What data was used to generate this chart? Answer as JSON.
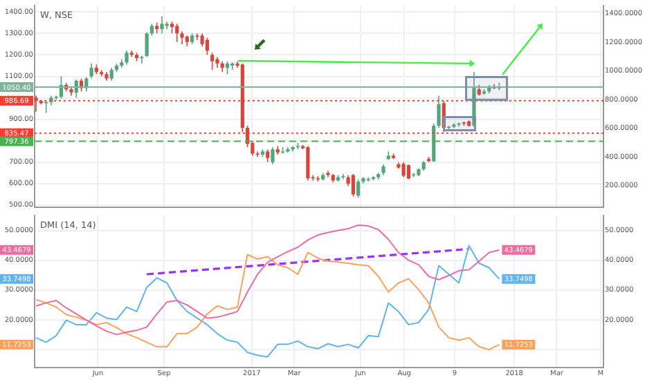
{
  "chart_data": [
    {
      "type": "candlestick",
      "title": "W, NSE",
      "x": [
        "2016-03-07",
        "2016-03-14",
        "2016-03-21",
        "2016-03-28",
        "2016-04-04",
        "2016-04-11",
        "2016-04-18",
        "2016-04-25",
        "2016-05-02",
        "2016-05-09",
        "2016-05-16",
        "2016-05-23",
        "2016-05-30",
        "2016-06-06",
        "2016-06-13",
        "2016-06-20",
        "2016-06-27",
        "2016-07-04",
        "2016-07-11",
        "2016-07-18",
        "2016-07-25",
        "2016-08-01",
        "2016-08-08",
        "2016-08-15",
        "2016-08-22",
        "2016-08-29",
        "2016-09-05",
        "2016-09-12",
        "2016-09-19",
        "2016-09-26",
        "2016-10-03",
        "2016-10-10",
        "2016-10-17",
        "2016-10-24",
        "2016-10-31",
        "2016-11-07",
        "2016-11-14",
        "2016-11-21",
        "2016-11-28",
        "2016-12-05",
        "2016-12-12",
        "2016-12-19",
        "2016-12-26",
        "2017-01-02",
        "2017-01-09",
        "2017-01-16",
        "2017-01-23",
        "2017-01-30",
        "2017-02-06",
        "2017-02-13",
        "2017-02-20",
        "2017-02-27",
        "2017-03-06",
        "2017-03-13",
        "2017-03-20",
        "2017-03-27",
        "2017-04-03",
        "2017-04-10",
        "2017-04-17",
        "2017-04-24",
        "2017-05-01",
        "2017-05-08",
        "2017-05-15",
        "2017-05-22",
        "2017-05-29",
        "2017-06-05",
        "2017-06-12",
        "2017-06-19",
        "2017-06-26",
        "2017-07-03",
        "2017-07-10",
        "2017-07-17",
        "2017-07-24",
        "2017-07-31",
        "2017-08-07",
        "2017-08-14",
        "2017-08-21",
        "2017-08-28",
        "2017-09-04",
        "2017-09-11",
        "2017-09-18",
        "2017-09-25",
        "2017-10-02",
        "2017-10-09",
        "2017-10-16",
        "2017-10-23",
        "2017-10-30",
        "2017-11-06",
        "2017-11-13",
        "2017-11-20",
        "2017-11-27",
        "2017-12-04",
        "2017-12-11"
      ],
      "ohlc": [
        [
          1000,
          1010,
          935,
          985
        ],
        [
          985,
          990,
          970,
          975
        ],
        [
          975,
          985,
          930,
          980
        ],
        [
          980,
          1010,
          965,
          1000
        ],
        [
          1000,
          1010,
          990,
          1005
        ],
        [
          1005,
          1100,
          995,
          1060
        ],
        [
          1060,
          1070,
          1030,
          1040
        ],
        [
          1040,
          1050,
          1010,
          1025
        ],
        [
          1025,
          1085,
          1000,
          1080
        ],
        [
          1080,
          1090,
          1030,
          1045
        ],
        [
          1045,
          1095,
          1030,
          1090
        ],
        [
          1100,
          1160,
          1090,
          1140
        ],
        [
          1140,
          1155,
          1110,
          1120
        ],
        [
          1120,
          1130,
          1100,
          1110
        ],
        [
          1110,
          1120,
          1080,
          1090
        ],
        [
          1090,
          1140,
          1080,
          1130
        ],
        [
          1130,
          1160,
          1120,
          1150
        ],
        [
          1150,
          1180,
          1140,
          1165
        ],
        [
          1165,
          1220,
          1155,
          1210
        ],
        [
          1210,
          1220,
          1190,
          1200
        ],
        [
          1200,
          1210,
          1170,
          1185
        ],
        [
          1185,
          1195,
          1160,
          1190
        ],
        [
          1195,
          1305,
          1190,
          1300
        ],
        [
          1300,
          1345,
          1290,
          1335
        ],
        [
          1335,
          1350,
          1300,
          1320
        ],
        [
          1320,
          1380,
          1300,
          1345
        ],
        [
          1335,
          1355,
          1320,
          1345
        ],
        [
          1345,
          1355,
          1300,
          1330
        ],
        [
          1335,
          1345,
          1260,
          1300
        ],
        [
          1300,
          1310,
          1250,
          1280
        ],
        [
          1285,
          1290,
          1240,
          1260
        ],
        [
          1260,
          1300,
          1250,
          1290
        ],
        [
          1290,
          1300,
          1270,
          1285
        ],
        [
          1290,
          1300,
          1240,
          1250
        ],
        [
          1270,
          1280,
          1200,
          1220
        ],
        [
          1200,
          1210,
          1130,
          1170
        ],
        [
          1180,
          1190,
          1140,
          1160
        ],
        [
          1160,
          1170,
          1120,
          1140
        ],
        [
          1140,
          1170,
          1110,
          1160
        ],
        [
          1150,
          1165,
          1130,
          1160
        ],
        [
          1160,
          1170,
          1140,
          1150
        ],
        [
          1155,
          1160,
          840,
          860
        ],
        [
          860,
          870,
          770,
          785
        ],
        [
          790,
          800,
          730,
          740
        ],
        [
          740,
          750,
          725,
          735
        ],
        [
          735,
          760,
          725,
          750
        ],
        [
          750,
          760,
          700,
          720
        ],
        [
          700,
          770,
          690,
          760
        ],
        [
          760,
          775,
          735,
          745
        ],
        [
          745,
          770,
          740,
          750
        ],
        [
          750,
          770,
          745,
          760
        ],
        [
          760,
          775,
          750,
          770
        ],
        [
          770,
          790,
          760,
          775
        ],
        [
          775,
          780,
          760,
          765
        ],
        [
          770,
          775,
          615,
          625
        ],
        [
          630,
          640,
          615,
          625
        ],
        [
          625,
          635,
          610,
          620
        ],
        [
          620,
          650,
          615,
          640
        ],
        [
          650,
          660,
          630,
          640
        ],
        [
          640,
          645,
          605,
          615
        ],
        [
          615,
          640,
          610,
          630
        ],
        [
          630,
          645,
          620,
          635
        ],
        [
          630,
          640,
          590,
          600
        ],
        [
          640,
          645,
          540,
          550
        ],
        [
          545,
          620,
          535,
          610
        ],
        [
          610,
          630,
          600,
          625
        ],
        [
          620,
          630,
          610,
          622
        ],
        [
          622,
          635,
          615,
          630
        ],
        [
          630,
          650,
          620,
          645
        ],
        [
          650,
          690,
          640,
          680
        ],
        [
          715,
          750,
          710,
          730
        ],
        [
          730,
          740,
          715,
          720
        ],
        [
          690,
          700,
          670,
          675
        ],
        [
          692,
          700,
          630,
          637
        ],
        [
          686,
          690,
          620,
          624
        ],
        [
          640,
          650,
          630,
          643
        ],
        [
          640,
          670,
          635,
          668
        ],
        [
          668,
          705,
          660,
          700
        ],
        [
          715,
          725,
          700,
          705
        ],
        [
          705,
          880,
          700,
          870
        ],
        [
          870,
          1010,
          860,
          970
        ],
        [
          975,
          985,
          840,
          860
        ],
        [
          862,
          870,
          855,
          865
        ],
        [
          865,
          880,
          860,
          875
        ],
        [
          875,
          885,
          865,
          880
        ],
        [
          885,
          890,
          870,
          880
        ],
        [
          890,
          895,
          865,
          870
        ],
        [
          870,
          1120,
          865,
          1050
        ],
        [
          1040,
          1060,
          1010,
          1015
        ],
        [
          1020,
          1040,
          1015,
          1030
        ],
        [
          1030,
          1060,
          1020,
          1050
        ],
        [
          1050,
          1065,
          1040,
          1045
        ],
        [
          1045,
          1070,
          1035,
          1050
        ]
      ],
      "xlim": [
        "2016-03-05",
        "2018-05-05"
      ],
      "xticks": [
        {
          "value": "2016-06-01",
          "label": null
        },
        {
          "value": "2016-09-01",
          "label": null
        },
        {
          "value": "2017-01-01",
          "label": null
        },
        {
          "value": "2017-03-01",
          "label": null
        },
        {
          "value": "2017-06-01",
          "label": null
        },
        {
          "value": "2017-08-01",
          "label": null
        },
        {
          "value": "2017-10-10",
          "label": null
        },
        {
          "value": "2018-01-01",
          "label": null
        },
        {
          "value": "2018-03-01",
          "label": null
        },
        {
          "value": "2018-05-01",
          "label": null
        }
      ],
      "ylim": [
        490,
        1430
      ],
      "yticks": [
        {
          "value": 500,
          "label": "500.00"
        },
        {
          "value": 600,
          "label": "600.00"
        },
        {
          "value": 700,
          "label": "700.00"
        },
        {
          "value": 800,
          "label": null
        },
        {
          "value": 900,
          "label": "900.00"
        },
        {
          "value": 1000,
          "label": null
        },
        {
          "value": 1100,
          "label": "1100.00"
        },
        {
          "value": 1200,
          "label": "1200.00"
        },
        {
          "value": 1300,
          "label": "1300.00"
        },
        {
          "value": 1400,
          "label": "1400.00"
        }
      ],
      "y2lim": [
        50,
        1455
      ],
      "y2ticks": [
        {
          "value": 200,
          "label": "200.0000"
        },
        {
          "value": 400,
          "label": "400.0000"
        },
        {
          "value": 600,
          "label": "600.0000"
        },
        {
          "value": 800,
          "label": "800.0000"
        },
        {
          "value": 1000,
          "label": "1000.0000"
        },
        {
          "value": 1200,
          "label": "1200.0000"
        },
        {
          "value": 1400,
          "label": "1400.0000"
        }
      ],
      "tick_labels": "y",
      "grid": true,
      "ref_lines": [
        {
          "axis": "y",
          "value": 1050.4,
          "label": "1050.40",
          "color": "#7fb39a",
          "line_style": "solid"
        },
        {
          "axis": "y",
          "value": 986.69,
          "label": "986.69",
          "color": "#ff3b30",
          "line_style": "dotted"
        },
        {
          "axis": "y",
          "value": 835.47,
          "label": "835.47",
          "color": "#ff3b30",
          "line_style": "dotted"
        },
        {
          "axis": "y",
          "value": 797.36,
          "label": "797.36",
          "color": "#4caf50",
          "line_style": "dashed"
        }
      ]
    },
    {
      "type": "line",
      "title": "DMI (14, 14)",
      "x": [
        "2016-03-07",
        "2016-03-21",
        "2016-04-04",
        "2016-04-18",
        "2016-05-02",
        "2016-05-16",
        "2016-05-30",
        "2016-06-13",
        "2016-06-27",
        "2016-07-11",
        "2016-07-25",
        "2016-08-08",
        "2016-08-22",
        "2016-09-05",
        "2016-09-19",
        "2016-10-03",
        "2016-10-17",
        "2016-10-31",
        "2016-11-14",
        "2016-11-28",
        "2016-12-12",
        "2016-12-26",
        "2017-01-09",
        "2017-01-23",
        "2017-02-06",
        "2017-02-20",
        "2017-03-06",
        "2017-03-20",
        "2017-04-03",
        "2017-04-17",
        "2017-05-01",
        "2017-05-15",
        "2017-05-29",
        "2017-06-12",
        "2017-06-26",
        "2017-07-10",
        "2017-07-24",
        "2017-08-07",
        "2017-08-21",
        "2017-09-04",
        "2017-09-18",
        "2017-10-02",
        "2017-10-16",
        "2017-10-30",
        "2017-11-13",
        "2017-11-27",
        "2017-12-11"
      ],
      "xlim": [
        "2016-03-05",
        "2018-05-05"
      ],
      "xticks": [
        {
          "value": "2016-06-01",
          "label": "Jun"
        },
        {
          "value": "2016-09-01",
          "label": "Sep"
        },
        {
          "value": "2017-01-01",
          "label": "2017"
        },
        {
          "value": "2017-03-01",
          "label": "Mar"
        },
        {
          "value": "2017-06-01",
          "label": "Jun"
        },
        {
          "value": "2017-08-01",
          "label": "Aug"
        },
        {
          "value": "2017-10-10",
          "label": "9"
        },
        {
          "value": "2018-01-01",
          "label": "2018"
        },
        {
          "value": "2018-03-01",
          "label": "Mar"
        },
        {
          "value": "2018-05-01",
          "label": "M"
        }
      ],
      "ylim": [
        4,
        55
      ],
      "yticks": [
        {
          "value": 10,
          "label": null
        },
        {
          "value": 20,
          "label": "20.0000"
        },
        {
          "value": 30,
          "label": "30.0000"
        },
        {
          "value": 40,
          "label": "40.0000"
        },
        {
          "value": 50,
          "label": "50.0000"
        }
      ],
      "y2lim": [
        4,
        55
      ],
      "y2ticks": [
        {
          "value": 10,
          "label": null
        },
        {
          "value": 20,
          "label": "20.0000"
        },
        {
          "value": 30,
          "label": "30.0000"
        },
        {
          "value": 40,
          "label": "40.0000"
        },
        {
          "value": 50,
          "label": "50.0000"
        }
      ],
      "grid": true,
      "marker": "none",
      "series": [
        {
          "color": "#f06aa0",
          "values": [
            24.7,
            25.7,
            26.5,
            24,
            22,
            19.9,
            18,
            16.2,
            15.1,
            15.9,
            16.5,
            17.6,
            22,
            26,
            26.5,
            25,
            22.8,
            20.6,
            20.9,
            21.8,
            22.8,
            29.4,
            35.3,
            39.3,
            41.2,
            42.9,
            44.4,
            46.8,
            48.5,
            49.3,
            50,
            50.6,
            51.8,
            51.5,
            50.3,
            47,
            42.6,
            40,
            38.5,
            34.6,
            33.5,
            34.9,
            36.5,
            36.8,
            39.7,
            42.6,
            43.4679
          ],
          "value_labels": [
            null,
            null,
            null,
            null,
            null,
            null,
            null,
            null,
            null,
            null,
            null,
            null,
            null,
            null,
            null,
            null,
            null,
            null,
            null,
            null,
            null,
            null,
            null,
            null,
            null,
            null,
            null,
            null,
            null,
            null,
            null,
            null,
            null,
            null,
            null,
            null,
            null,
            null,
            null,
            null,
            null,
            null,
            null,
            null,
            null,
            null,
            "43.4679"
          ]
        },
        {
          "color": "#ffa05a",
          "values": [
            26.8,
            25.7,
            24.3,
            21.8,
            20.9,
            19.9,
            18.4,
            19.1,
            17.4,
            15.4,
            14,
            12.5,
            11,
            11,
            15.4,
            15.4,
            17.6,
            22,
            24.7,
            23.5,
            24.3,
            41.9,
            40.4,
            41.2,
            38.5,
            37.5,
            35.3,
            42.6,
            40.7,
            39.7,
            39.4,
            39,
            38.5,
            38.2,
            34.6,
            29.4,
            32.4,
            33.8,
            30.1,
            25.7,
            17.6,
            14,
            13.2,
            14,
            11,
            10,
            11.7253
          ],
          "value_labels": [
            null,
            null,
            null,
            null,
            null,
            null,
            null,
            null,
            null,
            null,
            null,
            null,
            null,
            null,
            null,
            null,
            null,
            null,
            null,
            null,
            null,
            null,
            null,
            null,
            null,
            null,
            null,
            null,
            null,
            null,
            null,
            null,
            null,
            null,
            null,
            null,
            null,
            null,
            null,
            null,
            null,
            null,
            null,
            null,
            null,
            null,
            "11.7253"
          ]
        },
        {
          "color": "#5fb4f0",
          "values": [
            14,
            12.5,
            14.7,
            19.9,
            18.4,
            18.4,
            22.4,
            20.6,
            20.1,
            24.3,
            22.8,
            30.9,
            34.1,
            32.4,
            26.5,
            22.8,
            20.6,
            18.4,
            15.4,
            13.2,
            12.5,
            9.1,
            8.1,
            7.6,
            11.8,
            11.8,
            12.9,
            11,
            10.3,
            12,
            11,
            11.8,
            10.6,
            14.7,
            14.4,
            25.7,
            22.8,
            18.4,
            19.1,
            23.5,
            38.2,
            35.3,
            32.4,
            44.9,
            39,
            37.5,
            33.7498
          ],
          "value_labels": [
            null,
            null,
            null,
            null,
            null,
            null,
            null,
            null,
            null,
            null,
            null,
            null,
            null,
            null,
            null,
            null,
            null,
            null,
            null,
            null,
            null,
            null,
            null,
            null,
            null,
            null,
            null,
            null,
            null,
            null,
            null,
            null,
            null,
            null,
            null,
            null,
            null,
            null,
            null,
            null,
            null,
            null,
            null,
            null,
            null,
            null,
            "33.7498"
          ]
        },
        {
          "type": "line",
          "x": [
            "2016-08-08",
            "2017-10-30"
          ],
          "values": [
            35.3,
            43.8
          ],
          "color": "#9b30ff",
          "line_style": "dashed"
        }
      ]
    }
  ]
}
